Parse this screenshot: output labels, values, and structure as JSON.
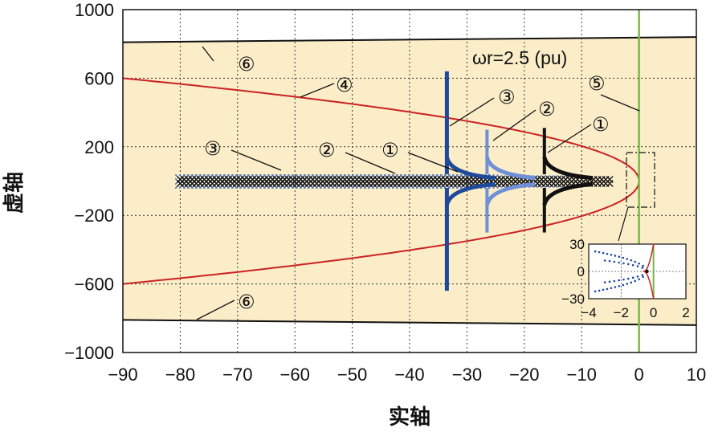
{
  "chart_data": {
    "type": "scatter",
    "xlabel": "实轴",
    "ylabel": "虚轴",
    "xlim": [
      -90,
      10
    ],
    "ylim": [
      -1000,
      1000
    ],
    "xticks": [
      -90,
      -80,
      -70,
      -60,
      -50,
      -40,
      -30,
      -20,
      -10,
      0,
      10
    ],
    "yticks": [
      -1000,
      -600,
      -200,
      200,
      600,
      1000
    ],
    "grid": true,
    "annotation": "ωr=2.5 (pu)",
    "colors": {
      "region": "#faedc8",
      "boundary": "#111111",
      "parabola": "#cc2222",
      "imag_axis": "#7ab648",
      "series1": "#111111",
      "series2": "#6f8fd6",
      "series3": "#1f4a9c"
    },
    "series": [
      {
        "marker": "①",
        "real_branch_x": [
          -80,
          -5
        ],
        "vertical_branch_x": -16.5,
        "vertical_branch_y": [
          -300,
          310
        ],
        "color": "#111111"
      },
      {
        "marker": "②",
        "real_branch_x": [
          -80,
          -10
        ],
        "vertical_branch_x": -26.5,
        "vertical_branch_y": [
          -300,
          300
        ],
        "color": "#6f8fd6"
      },
      {
        "marker": "③",
        "real_branch_x": [
          -80,
          -25
        ],
        "vertical_branch_x": -33.5,
        "vertical_branch_y": [
          -640,
          640
        ],
        "color": "#1f4a9c"
      }
    ],
    "boundary_lines": [
      {
        "marker": "⑥",
        "x": [
          -90,
          10
        ],
        "y_upper": [
          810,
          840
        ],
        "y_lower": [
          -810,
          -840
        ]
      }
    ],
    "parabola": {
      "marker": "④",
      "vertex_x": 0,
      "points": [
        [
          -90,
          600
        ],
        [
          -60,
          490
        ],
        [
          -30,
          350
        ],
        [
          -10,
          200
        ],
        [
          0,
          0
        ],
        [
          -10,
          -200
        ],
        [
          -30,
          -350
        ],
        [
          -60,
          -490
        ],
        [
          -90,
          -600
        ]
      ]
    },
    "imag_axis_line": {
      "marker": "⑤",
      "x": 0
    },
    "labels": {
      "series1": "①",
      "series2": "②",
      "series3": "③",
      "parabola": "④",
      "imag_axis": "⑤",
      "boundary": "⑥"
    },
    "inset": {
      "xlim": [
        -4,
        2
      ],
      "ylim": [
        -30,
        30
      ],
      "xticks": [
        -4,
        -2,
        0,
        2
      ],
      "yticks": [
        -30,
        0,
        30
      ]
    }
  }
}
